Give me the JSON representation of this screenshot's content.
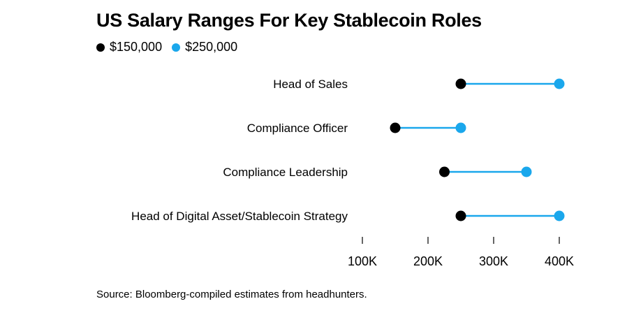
{
  "chart_data": {
    "type": "dumbbell",
    "title": "US Salary Ranges For Key Stablecoin Roles",
    "legend": [
      {
        "label": "$150,000",
        "color": "#000000"
      },
      {
        "label": "$250,000",
        "color": "#1aa7ec"
      }
    ],
    "categories": [
      "Head of Sales",
      "Compliance Officer",
      "Compliance Leadership",
      "Head of Digital Asset/Stablecoin Strategy"
    ],
    "series": [
      {
        "name": "low",
        "values": [
          250000,
          150000,
          225000,
          250000
        ]
      },
      {
        "name": "high",
        "values": [
          400000,
          250000,
          350000,
          400000
        ]
      }
    ],
    "xlim": [
      100000,
      400000
    ],
    "xticks": [
      100000,
      200000,
      300000,
      400000
    ],
    "xtick_labels": [
      "100K",
      "200K",
      "300K",
      "400K"
    ],
    "colors": {
      "low": "#000000",
      "high": "#1aa7ec",
      "line": "#1aa7ec"
    },
    "grid": false,
    "legend_position": "top-left"
  },
  "source": "Source: Bloomberg-compiled estimates from headhunters."
}
